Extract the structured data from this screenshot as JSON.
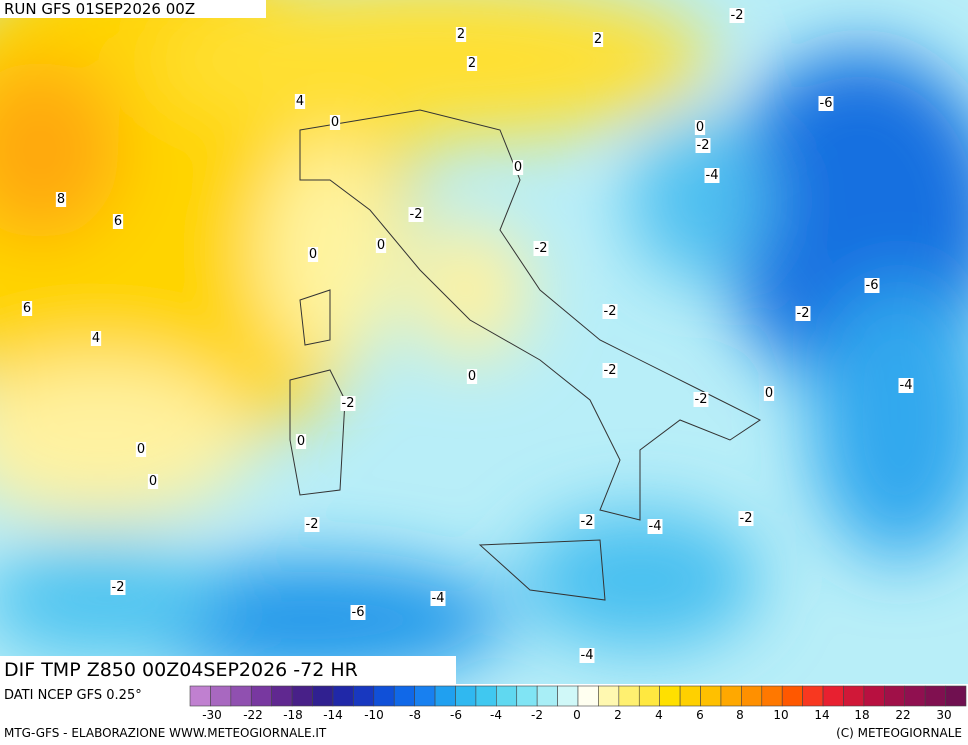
{
  "header": {
    "title": "RUN GFS 01SEP2026 00Z"
  },
  "subtitle": "DIF TMP Z850 00Z04SEP2026 -72 HR",
  "source": "DATI NCEP GFS 0.25°",
  "footer": {
    "left": "MTG-GFS - ELABORAZIONE WWW.METEOGIORNALE.IT",
    "right": "(C) METEOGIORNALE"
  },
  "contour_labels": [
    "-2",
    "2",
    "2",
    "2",
    "4",
    "-6",
    "0",
    "0",
    "-2",
    "0",
    "-4",
    "8",
    "-2",
    "6",
    "0",
    "-2",
    "0",
    "-6",
    "6",
    "-2",
    "-2",
    "4",
    "-2",
    "0",
    "-4",
    "0",
    "-2",
    "-2",
    "0",
    "0",
    "0",
    "-2",
    "-2",
    "-4",
    "-2",
    "-2",
    "-4",
    "-6",
    "-4"
  ],
  "colorbar": {
    "colors": [
      "#c080d0",
      "#a868c0",
      "#9050b0",
      "#7838a0",
      "#602890",
      "#482088",
      "#302090",
      "#2028a8",
      "#1838c0",
      "#1050d8",
      "#1068e8",
      "#1880f0",
      "#20a0f0",
      "#30b8f0",
      "#40c8f0",
      "#60d8f0",
      "#80e4f4",
      "#a8eef6",
      "#d0f8f8",
      "#fffff0",
      "#fff8b0",
      "#fff070",
      "#ffe840",
      "#ffe000",
      "#ffd000",
      "#ffc000",
      "#ffa800",
      "#ff9000",
      "#ff7800",
      "#ff5800",
      "#f83820",
      "#e82030",
      "#d01838",
      "#b81040",
      "#a01048",
      "#901050",
      "#801050",
      "#701050"
    ],
    "labels": [
      "-30",
      "-22",
      "-18",
      "-14",
      "-10",
      "-8",
      "-6",
      "-4",
      "-2",
      "0",
      "2",
      "4",
      "6",
      "8",
      "10",
      "14",
      "18",
      "22",
      "30"
    ]
  }
}
